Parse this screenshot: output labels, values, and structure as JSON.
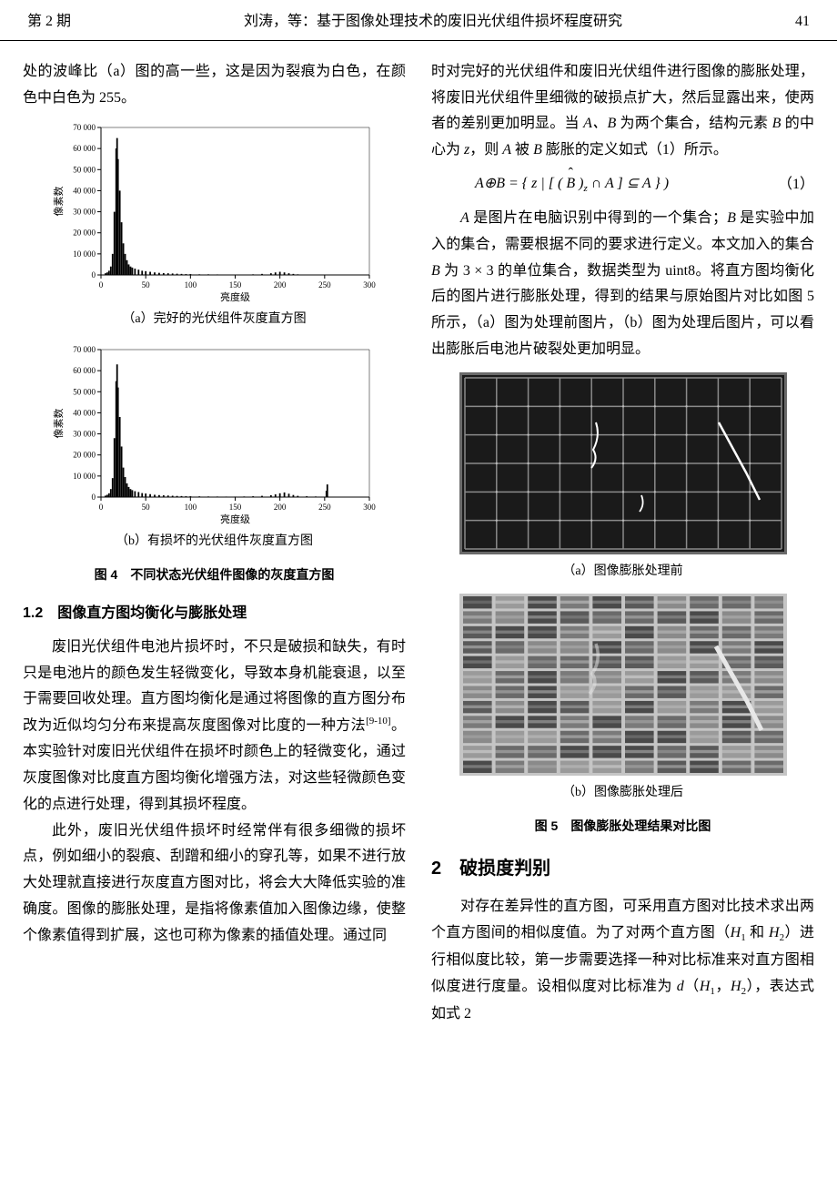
{
  "header": {
    "issue": "第 2 期",
    "title": "刘涛，等：基于图像处理技术的废旧光伏组件损坏程度研究",
    "page": "41"
  },
  "left": {
    "intro": "处的波峰比（a）图的高一些，这是因为裂痕为白色，在颜色中白色为 255。",
    "hist_a": {
      "type": "histogram",
      "ylabel": "像素数",
      "xlabel": "亮度级",
      "xlim": [
        0,
        300
      ],
      "xtick_step": 50,
      "ylim": [
        0,
        70000
      ],
      "ytick_step": 10000,
      "ytick_labels": [
        "0",
        "10 000",
        "20 000",
        "30 000",
        "40 000",
        "50 000",
        "60 000",
        "70 000"
      ],
      "xtick_labels": [
        "0",
        "50",
        "100",
        "150",
        "200",
        "250",
        "300"
      ],
      "bar_color": "#000000",
      "background_color": "#ffffff",
      "axis_color": "#000000",
      "label_fontsize": 11,
      "tick_fontsize": 9,
      "peak_x": 18,
      "peak_value": 65000,
      "bars": [
        [
          5,
          800
        ],
        [
          7,
          1200
        ],
        [
          9,
          2000
        ],
        [
          11,
          4000
        ],
        [
          13,
          10000
        ],
        [
          15,
          30000
        ],
        [
          17,
          60000
        ],
        [
          18,
          65000
        ],
        [
          19,
          55000
        ],
        [
          21,
          40000
        ],
        [
          23,
          25000
        ],
        [
          25,
          15000
        ],
        [
          27,
          10000
        ],
        [
          29,
          7000
        ],
        [
          31,
          5000
        ],
        [
          33,
          4000
        ],
        [
          35,
          3500
        ],
        [
          38,
          3000
        ],
        [
          42,
          2500
        ],
        [
          46,
          2000
        ],
        [
          50,
          1800
        ],
        [
          55,
          1500
        ],
        [
          60,
          1200
        ],
        [
          65,
          1000
        ],
        [
          70,
          900
        ],
        [
          75,
          800
        ],
        [
          80,
          700
        ],
        [
          85,
          600
        ],
        [
          90,
          500
        ],
        [
          95,
          400
        ],
        [
          100,
          400
        ],
        [
          110,
          300
        ],
        [
          120,
          300
        ],
        [
          130,
          250
        ],
        [
          140,
          200
        ],
        [
          150,
          200
        ],
        [
          160,
          200
        ],
        [
          170,
          300
        ],
        [
          180,
          500
        ],
        [
          190,
          800
        ],
        [
          195,
          1200
        ],
        [
          200,
          1500
        ],
        [
          205,
          1200
        ],
        [
          210,
          800
        ],
        [
          215,
          500
        ],
        [
          220,
          300
        ],
        [
          230,
          200
        ],
        [
          240,
          100
        ],
        [
          250,
          50
        ]
      ]
    },
    "caption_a": "（a）完好的光伏组件灰度直方图",
    "hist_b": {
      "type": "histogram",
      "ylabel": "像素数",
      "xlabel": "亮度级",
      "xlim": [
        0,
        300
      ],
      "xtick_step": 50,
      "ylim": [
        0,
        70000
      ],
      "ytick_step": 10000,
      "ytick_labels": [
        "0",
        "10 000",
        "20 000",
        "30 000",
        "40 000",
        "50 000",
        "60 000",
        "70 000"
      ],
      "xtick_labels": [
        "0",
        "50",
        "100",
        "150",
        "200",
        "250",
        "300"
      ],
      "bar_color": "#000000",
      "background_color": "#ffffff",
      "axis_color": "#000000",
      "label_fontsize": 11,
      "tick_fontsize": 9,
      "peak_x": 18,
      "peak_value": 63000,
      "bars": [
        [
          5,
          700
        ],
        [
          7,
          1100
        ],
        [
          9,
          1800
        ],
        [
          11,
          3800
        ],
        [
          13,
          9000
        ],
        [
          15,
          28000
        ],
        [
          17,
          55000
        ],
        [
          18,
          63000
        ],
        [
          19,
          52000
        ],
        [
          21,
          38000
        ],
        [
          23,
          24000
        ],
        [
          25,
          14000
        ],
        [
          27,
          9500
        ],
        [
          29,
          6500
        ],
        [
          31,
          4800
        ],
        [
          33,
          3800
        ],
        [
          35,
          3300
        ],
        [
          38,
          2800
        ],
        [
          42,
          2400
        ],
        [
          46,
          1900
        ],
        [
          50,
          1700
        ],
        [
          55,
          1400
        ],
        [
          60,
          1100
        ],
        [
          65,
          950
        ],
        [
          70,
          850
        ],
        [
          75,
          750
        ],
        [
          80,
          650
        ],
        [
          85,
          550
        ],
        [
          90,
          500
        ],
        [
          95,
          400
        ],
        [
          100,
          400
        ],
        [
          110,
          350
        ],
        [
          120,
          300
        ],
        [
          130,
          280
        ],
        [
          140,
          250
        ],
        [
          150,
          250
        ],
        [
          160,
          300
        ],
        [
          170,
          400
        ],
        [
          180,
          600
        ],
        [
          190,
          900
        ],
        [
          195,
          1300
        ],
        [
          200,
          1800
        ],
        [
          205,
          2200
        ],
        [
          210,
          1600
        ],
        [
          215,
          1000
        ],
        [
          220,
          600
        ],
        [
          230,
          400
        ],
        [
          240,
          300
        ],
        [
          250,
          200
        ],
        [
          252,
          3000
        ],
        [
          253,
          6000
        ],
        [
          254,
          200
        ]
      ]
    },
    "caption_b": "（b）有损坏的光伏组件灰度直方图",
    "fig4_title": "图 4　不同状态光伏组件图像的灰度直方图",
    "sec12": "1.2　图像直方图均衡化与膨胀处理",
    "p1": "废旧光伏组件电池片损坏时，不只是破损和缺失，有时只是电池片的颜色发生轻微变化，导致本身机能衰退，以至于需要回收处理。直方图均衡化是通过将图像的直方图分布改为近似均匀分布来提高灰度图像对比度的一种方法",
    "p1_ref": "[9-10]",
    "p1_end": "。本实验针对废旧光伏组件在损坏时颜色上的轻微变化，通过灰度图像对比度直方图均衡化增强方法，对这些轻微颜色变化的点进行处理，得到其损坏程度。",
    "p2": "此外，废旧光伏组件损坏时经常伴有很多细微的损坏点，例如细小的裂痕、刮蹭和细小的穿孔等，如果不进行放大处理就直接进行灰度直方图对比，将会大大降低实验的准确度。图像的膨胀处理，是指将像素值加入图像边缘，使整个像素值得到扩展，这也可称为像素的插值处理。通过同"
  },
  "right": {
    "p1": "时对完好的光伏组件和废旧光伏组件进行图像的膨胀处理，将废旧光伏组件里细微的破损点扩大，然后显露出来，使两者的差别更加明显。当 ",
    "p1_AB": "A、B",
    "p1_mid": " 为两个集合，结构元素 ",
    "p1_B": "B",
    "p1_mid2": " 的中心为 ",
    "p1_z": "z",
    "p1_mid3": "，则 ",
    "p1_A": "A",
    "p1_mid4": " 被 ",
    "p1_B2": "B",
    "p1_end": " 膨胀的定义如式（1）所示。",
    "eq1": "A⊕B = { z | [ ( B̂ )z ∩ A ] ⊆ A } ",
    "eq1_num": "（1）",
    "p2a": "A",
    "p2": " 是图片在电脑识别中得到的一个集合；",
    "p2b": "B",
    "p2_mid": " 是实验中加入的集合，需要根据不同的要求进行定义。本文加入的集合 ",
    "p2_B": "B",
    "p2_mid2": " 为 3 × 3 的单位集合，数据类型为 uint8。将直方图均衡化后的图片进行膨胀处理，得到的结果与原始图片对比如图 5 所示，（a）图为处理前图片，（b）图为处理后图片，可以看出膨胀后电池片破裂处更加明显。",
    "panel": {
      "rows": 6,
      "cols": 10,
      "bg": "#1a1a1a",
      "frame": "#6a6a6a",
      "grid_color": "#8a8a8a",
      "crack_color": "#ffffff"
    },
    "caption_5a": "（a）图像膨胀处理前",
    "dilated": {
      "rows": 12,
      "cols": 10,
      "bg": "#c5c5c5",
      "cell_colors": [
        "#4a4a4a",
        "#5a5a5a",
        "#6a6a6a",
        "#7a7a7a",
        "#8a8a8a",
        "#9a9a9a"
      ],
      "crack_color": "#e8e8e8"
    },
    "caption_5b": "（b）图像膨胀处理后",
    "fig5_title": "图 5　图像膨胀处理结果对比图",
    "sec2": "2　破损度判别",
    "p3_a": "对存在差异性的直方图，可采用直方图对比技术求出两个直方图间的相似度值。为了对两个直方图（",
    "p3_H1": "H",
    "p3_s1": "1",
    "p3_and": " 和 ",
    "p3_H2": "H",
    "p3_s2": "2",
    "p3_b": "）进行相似度比较，第一步需要选择一种对比标准来对直方图相似度进行度量。设相似度对比标准为 ",
    "p3_d": "d",
    "p3_op": "（",
    "p3_dH1": "H",
    "p3_ds1": "1",
    "p3_comma": "，",
    "p3_dH2": "H",
    "p3_ds2": "2",
    "p3_cp": "）",
    "p3_c": "，表达式如式 2"
  }
}
